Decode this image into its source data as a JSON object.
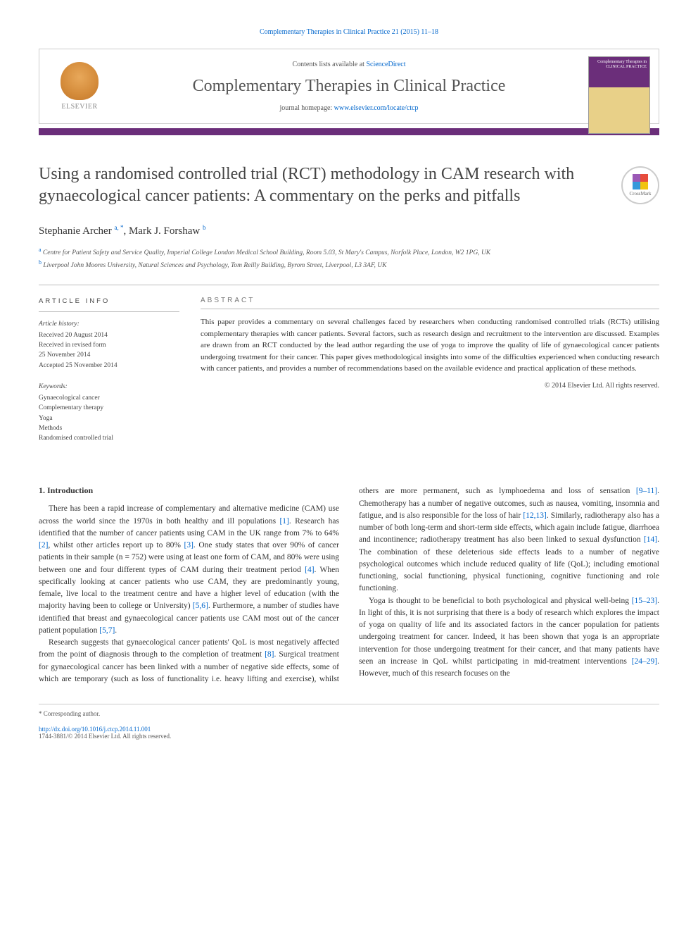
{
  "colors": {
    "accent": "#6b2e7a",
    "link": "#0066cc",
    "text": "#333333",
    "muted": "#555555"
  },
  "running_head": "Complementary Therapies in Clinical Practice 21 (2015) 11–18",
  "masthead": {
    "contents_prefix": "Contents lists available at ",
    "contents_link": "ScienceDirect",
    "journal": "Complementary Therapies in Clinical Practice",
    "homepage_prefix": "journal homepage: ",
    "homepage_url": "www.elsevier.com/locate/ctcp",
    "publisher_name": "ELSEVIER",
    "cover_text": "Complementary Therapies in CLINICAL PRACTICE"
  },
  "article": {
    "title": "Using a randomised controlled trial (RCT) methodology in CAM research with gynaecological cancer patients: A commentary on the perks and pitfalls",
    "crossmark_label": "CrossMark",
    "authors_html": "Stephanie Archer <sup>a, *</sup>, Mark J. Forshaw <sup>b</sup>",
    "author1": "Stephanie Archer",
    "author1_sup": "a, *",
    "author2": "Mark J. Forshaw",
    "author2_sup": "b",
    "affil_a_sup": "a",
    "affil_a": "Centre for Patient Safety and Service Quality, Imperial College London Medical School Building, Room 5.03, St Mary's Campus, Norfolk Place, London, W2 1PG, UK",
    "affil_b_sup": "b",
    "affil_b": "Liverpool John Moores University, Natural Sciences and Psychology, Tom Reilly Building, Byrom Street, Liverpool, L3 3AF, UK"
  },
  "info": {
    "heading": "article info",
    "history_label": "Article history:",
    "received": "Received 20 August 2014",
    "revised1": "Received in revised form",
    "revised2": "25 November 2014",
    "accepted": "Accepted 25 November 2014",
    "keywords_label": "Keywords:",
    "keywords": [
      "Gynaecological cancer",
      "Complementary therapy",
      "Yoga",
      "Methods",
      "Randomised controlled trial"
    ]
  },
  "abstract": {
    "heading": "abstract",
    "text": "This paper provides a commentary on several challenges faced by researchers when conducting randomised controlled trials (RCTs) utilising complementary therapies with cancer patients. Several factors, such as research design and recruitment to the intervention are discussed. Examples are drawn from an RCT conducted by the lead author regarding the use of yoga to improve the quality of life of gynaecological cancer patients undergoing treatment for their cancer. This paper gives methodological insights into some of the difficulties experienced when conducting research with cancer patients, and provides a number of recommendations based on the available evidence and practical application of these methods.",
    "copyright": "© 2014 Elsevier Ltd. All rights reserved."
  },
  "body": {
    "h_intro": "1. Introduction",
    "p1_a": "There has been a rapid increase of complementary and alternative medicine (CAM) use across the world since the 1970s in both healthy and ill populations ",
    "p1_r1": "[1]",
    "p1_b": ". Research has identified that the number of cancer patients using CAM in the UK range from 7% to 64% ",
    "p1_r2": "[2]",
    "p1_c": ", whilst other articles report up to 80% ",
    "p1_r3": "[3]",
    "p1_d": ". One study states that over 90% of cancer patients in their sample (n = 752) were using at least one form of CAM, and 80% were using between one and four different types of CAM during their treatment period ",
    "p1_r4": "[4]",
    "p1_e": ". When specifically looking at cancer patients who use CAM, they are predominantly young, female, live local to the treatment centre and have a higher level of education (with the majority having been to college or University) ",
    "p1_r5": "[5,6]",
    "p1_f": ". Furthermore, a number of studies have identified that breast and gynaecological cancer patients use CAM most out of the cancer patient population ",
    "p1_r6": "[5,7]",
    "p1_g": ".",
    "p2_a": "Research suggests that gynaecological cancer patients' QoL is most negatively affected from the point of diagnosis through to the completion of treatment ",
    "p2_r1": "[8]",
    "p2_b": ". Surgical treatment for gynaecological cancer has been linked with a number of negative side effects, some of which are temporary (such as loss of functionality i.e. heavy lifting and exercise), whilst others are more permanent, such as lymphoedema and loss of sensation ",
    "p2_r2": "[9–11]",
    "p2_c": ". Chemotherapy has a number of negative outcomes, such as nausea, vomiting, insomnia and fatigue, and is also responsible for the loss of hair ",
    "p2_r3": "[12,13]",
    "p2_d": ". Similarly, radiotherapy also has a number of both long-term and short-term side effects, which again include fatigue, diarrhoea and incontinence; radiotherapy treatment has also been linked to sexual dysfunction ",
    "p2_r4": "[14]",
    "p2_e": ". The combination of these deleterious side effects leads to a number of negative psychological outcomes which include reduced quality of life (QoL); including emotional functioning, social functioning, physical functioning, cognitive functioning and role functioning.",
    "p3_a": "Yoga is thought to be beneficial to both psychological and physical well-being ",
    "p3_r1": "[15–23]",
    "p3_b": ". In light of this, it is not surprising that there is a body of research which explores the impact of yoga on quality of life and its associated factors in the cancer population for patients undergoing treatment for cancer. Indeed, it has been shown that yoga is an appropriate intervention for those undergoing treatment for their cancer, and that many patients have seen an increase in QoL whilst participating in mid-treatment interventions ",
    "p3_r2": "[24–29]",
    "p3_c": ". However, much of this research focuses on the"
  },
  "footer": {
    "corr": "* Corresponding author.",
    "doi": "http://dx.doi.org/10.1016/j.ctcp.2014.11.001",
    "issn_line": "1744-3881/© 2014 Elsevier Ltd. All rights reserved."
  }
}
